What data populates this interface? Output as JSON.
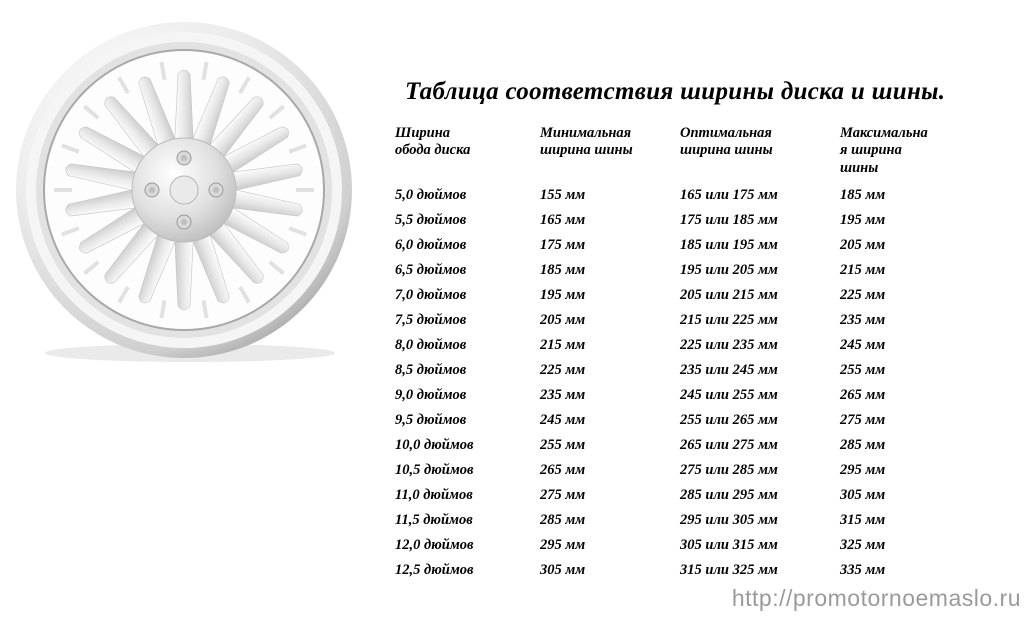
{
  "title": "Таблица соответствия ширины диска и шины.",
  "headers": {
    "c1a": "Ширина",
    "c1b": "обода диска",
    "c2a": "Минимальная",
    "c2b": "ширина шины",
    "c3a": "Оптимальная",
    "c3b": "ширина шины",
    "c4a": "Максимальна",
    "c4b": "я ширина",
    "c4c": "шины"
  },
  "rows": [
    {
      "w": "5,0 дюймов",
      "min": "155 мм",
      "opt": "165 или 175 мм",
      "max": "185 мм"
    },
    {
      "w": "5,5 дюймов",
      "min": "165 мм",
      "opt": "175 или 185 мм",
      "max": "195 мм"
    },
    {
      "w": "6,0 дюймов",
      "min": "175 мм",
      "opt": "185 или 195 мм",
      "max": "205 мм"
    },
    {
      "w": "6,5 дюймов",
      "min": "185 мм",
      "opt": "195 или 205 мм",
      "max": "215 мм"
    },
    {
      "w": "7,0 дюймов",
      "min": "195 мм",
      "opt": "205 или 215 мм",
      "max": "225 мм"
    },
    {
      "w": "7,5 дюймов",
      "min": "205 мм",
      "opt": "215 или 225 мм",
      "max": "235 мм"
    },
    {
      "w": "8,0 дюймов",
      "min": "215 мм",
      "opt": "225 или 235 мм",
      "max": "245 мм"
    },
    {
      "w": "8,5 дюймов",
      "min": "225 мм",
      "opt": "235 или 245 мм",
      "max": "255 мм"
    },
    {
      "w": "9,0 дюймов",
      "min": "235 мм",
      "opt": "245 или 255 мм",
      "max": "265 мм"
    },
    {
      "w": "9,5 дюймов",
      "min": "245 мм",
      "opt": "255 или 265 мм",
      "max": "275 мм"
    },
    {
      "w": "10,0 дюймов",
      "min": "255 мм",
      "opt": "265 или 275 мм",
      "max": "285 мм"
    },
    {
      "w": "10,5 дюймов",
      "min": "265 мм",
      "opt": "275 или 285 мм",
      "max": "295 мм"
    },
    {
      "w": "11,0 дюймов",
      "min": "275 мм",
      "opt": "285 или 295 мм",
      "max": "305 мм"
    },
    {
      "w": "11,5 дюймов",
      "min": "285 мм",
      "opt": "295 или 305 мм",
      "max": "315 мм"
    },
    {
      "w": "12,0 дюймов",
      "min": "295 мм",
      "opt": "305 или 315 мм",
      "max": "325 мм"
    },
    {
      "w": "12,5 дюймов",
      "min": "305 мм",
      "opt": "315 или 325 мм",
      "max": "335 мм"
    }
  ],
  "footer": "http://promotornoemaslo.ru",
  "style": {
    "bg": "#ffffff",
    "text": "#000000",
    "footer_color": "#9a9a9a",
    "title_fontsize": 25,
    "cell_fontsize": 14.5,
    "font_family": "Times New Roman, Georgia, serif",
    "font_style": "italic",
    "font_weight": "bold",
    "wheel": {
      "rim_colors": [
        "#f9f9f9",
        "#e8e8e8",
        "#cfcfcf",
        "#b8b8b8",
        "#9b9b9b"
      ],
      "spoke_count": 18,
      "bolt_count": 4,
      "shadow_color": "#d0d0d0"
    }
  }
}
